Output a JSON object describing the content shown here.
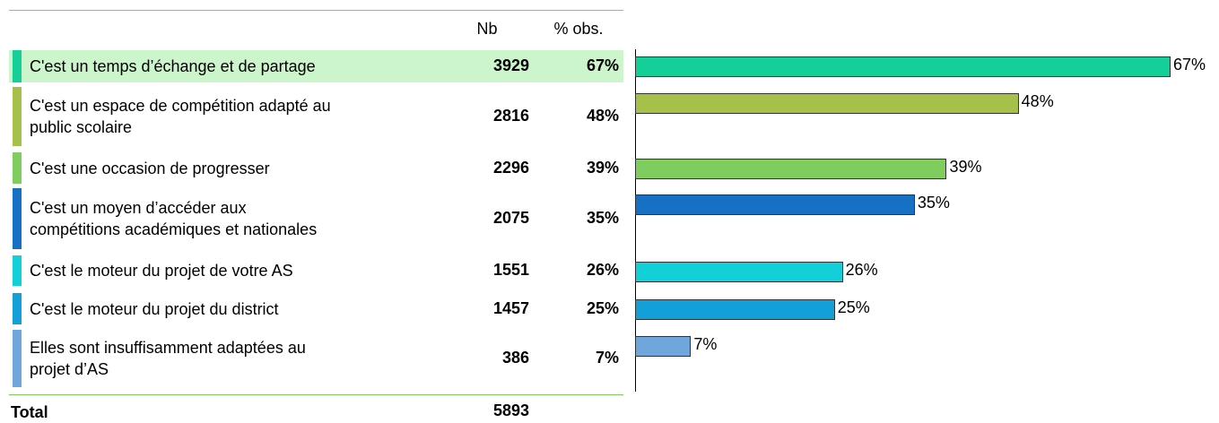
{
  "chart_data": {
    "type": "hbar",
    "columns": [
      "Nb",
      "% obs."
    ],
    "categories": [
      "C'est un temps d’échange et de partage",
      "C'est un espace de compétition adapté au\npublic scolaire",
      "C'est une occasion de progresser",
      "C'est un moyen d’accéder aux\ncompétitions académiques et nationales",
      "C'est le moteur du projet de votre AS",
      "C'est le moteur du projet du district",
      "Elles sont insuffisamment adaptées au\nprojet d’AS"
    ],
    "counts": [
      3929,
      2816,
      2296,
      2075,
      1551,
      1457,
      386
    ],
    "values": [
      67,
      48,
      39,
      35,
      26,
      25,
      7
    ],
    "value_labels": [
      "67%",
      "48%",
      "39%",
      "35%",
      "26%",
      "25%",
      "7%"
    ],
    "colors": [
      "#14cf97",
      "#a6c14a",
      "#7fcc5f",
      "#1670c4",
      "#12cfd8",
      "#139fd8",
      "#6fa6dc"
    ],
    "total_label": "Total",
    "total": 5893,
    "xlim": [
      0,
      100
    ]
  }
}
